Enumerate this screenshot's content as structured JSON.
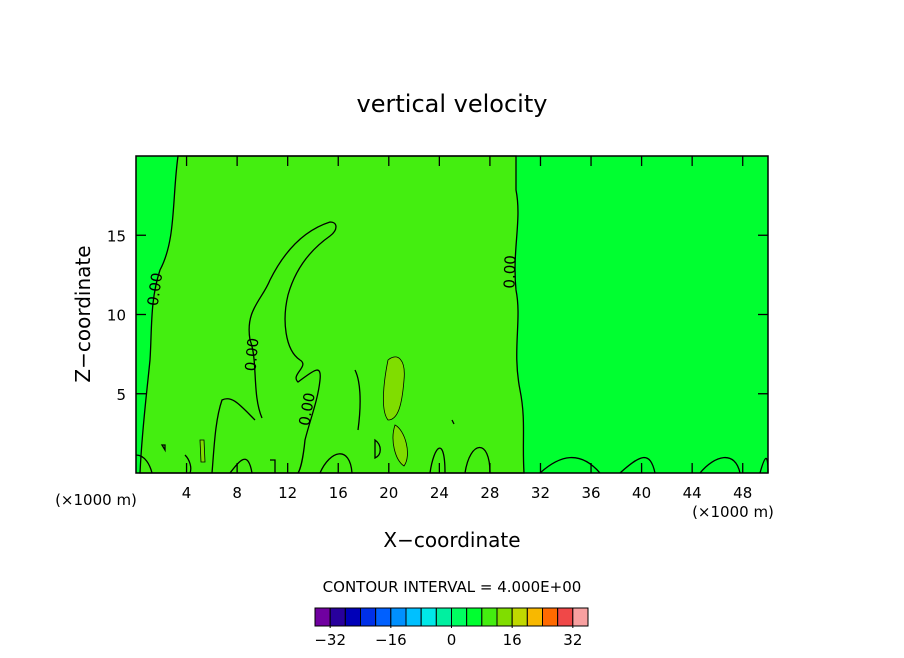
{
  "chart_data": {
    "type": "contour",
    "title": "vertical velocity",
    "x_label": "X−coordinate",
    "y_label": "Z−coordinate",
    "x_unit": "(×1000 m)",
    "y_unit": "(×1000 m)",
    "xlim": [
      0,
      50
    ],
    "ylim": [
      0,
      20
    ],
    "xticks": [
      4,
      8,
      12,
      16,
      20,
      24,
      28,
      32,
      36,
      40,
      44,
      48
    ],
    "yticks": [
      5,
      10,
      15
    ],
    "contour_labels": [
      "0.00",
      "0.00",
      "0.00",
      "0.00"
    ],
    "contour_interval": "CONTOUR INTERVAL = 4.000E+00",
    "colorbar": {
      "lim": [
        -36,
        36
      ],
      "colors": [
        "#7000a0",
        "#28009c",
        "#0000b8",
        "#0030e8",
        "#0060ff",
        "#0090ff",
        "#00c0ff",
        "#00e8e8",
        "#00f0a0",
        "#00ff60",
        "#00ff30",
        "#44ee10",
        "#80dd00",
        "#c0d800",
        "#f8b800",
        "#ff6a00",
        "#f04848",
        "#f8a0a0"
      ],
      "ticks": [
        {
          "value": -32,
          "label": "−32"
        },
        {
          "value": -16,
          "label": "−16"
        },
        0,
        16,
        32
      ]
    }
  }
}
